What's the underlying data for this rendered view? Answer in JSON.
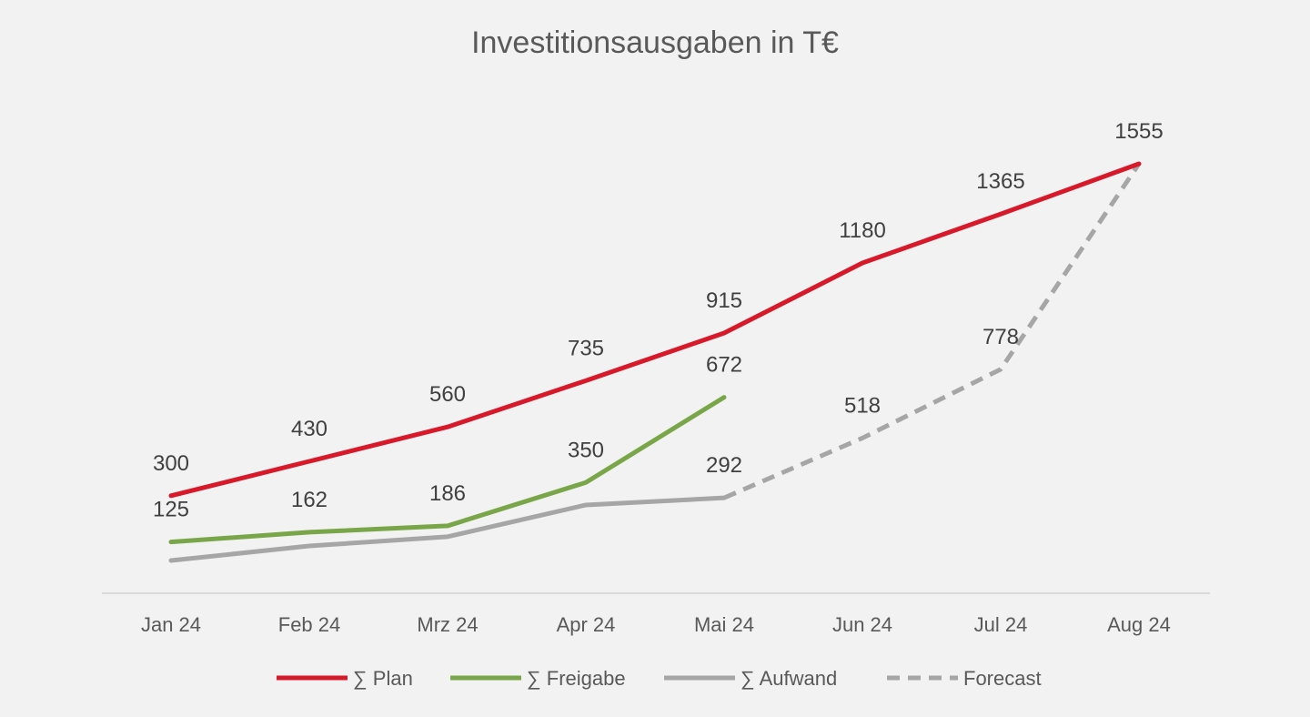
{
  "chart_data": {
    "type": "line",
    "title": "Investitionsausgaben in T€",
    "xlabel": "",
    "ylabel": "",
    "categories": [
      "Jan 24",
      "Feb 24",
      "Mrz 24",
      "Apr 24",
      "Mai 24",
      "Jun 24",
      "Jul 24",
      "Aug 24"
    ],
    "ylim": [
      0,
      1750
    ],
    "grid": false,
    "legend_position": "bottom",
    "series": [
      {
        "name": "∑ Plan",
        "color": "#d7192a",
        "dash": false,
        "values": [
          300,
          430,
          560,
          735,
          915,
          1180,
          1365,
          1555
        ],
        "labels": [
          "300",
          "430",
          "560",
          "735",
          "915",
          "1180",
          "1365",
          "1555"
        ]
      },
      {
        "name": "∑ Freigabe",
        "color": "#7aa64a",
        "dash": false,
        "values": [
          125,
          162,
          186,
          350,
          672,
          null,
          null,
          null
        ],
        "labels": [
          "125",
          "162",
          "186",
          "350",
          "672",
          null,
          null,
          null
        ]
      },
      {
        "name": "∑ Aufwand",
        "color": "#a6a6a6",
        "dash": false,
        "values": [
          55,
          110,
          145,
          265,
          292,
          null,
          null,
          null
        ],
        "labels": [
          null,
          null,
          null,
          null,
          "292",
          null,
          null,
          null
        ]
      },
      {
        "name": "Forecast",
        "color": "#a6a6a6",
        "dash": true,
        "values": [
          null,
          null,
          null,
          null,
          292,
          518,
          778,
          1555
        ],
        "labels": [
          null,
          null,
          null,
          null,
          null,
          "518",
          "778",
          null
        ]
      }
    ]
  }
}
